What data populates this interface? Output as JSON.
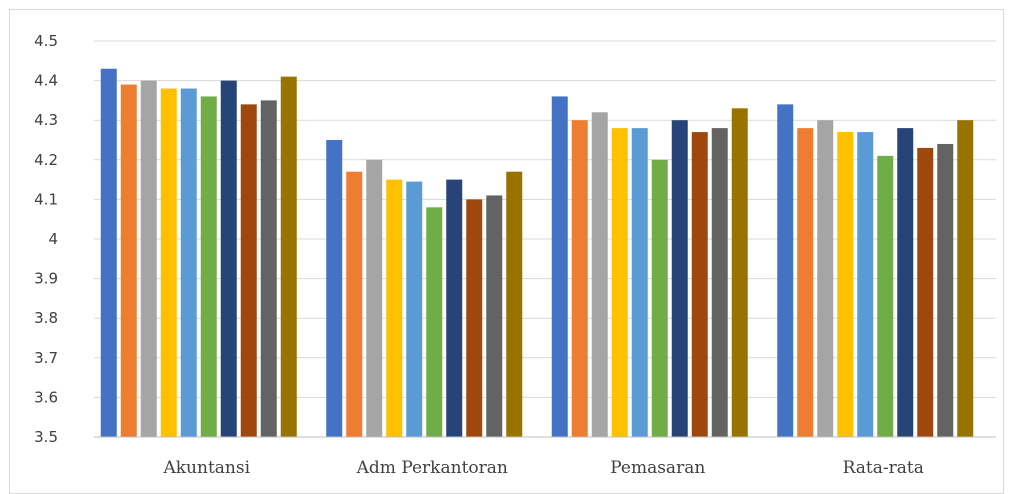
{
  "chart_data": {
    "type": "bar",
    "categories": [
      "Akuntansi",
      "Adm Perkantoran",
      "Pemasaran",
      "Rata-rata"
    ],
    "series": [
      {
        "values": [
          4.43,
          4.25,
          4.36,
          4.34
        ],
        "color": "#4472c4"
      },
      {
        "values": [
          4.39,
          4.17,
          4.3,
          4.28
        ],
        "color": "#ed7d31"
      },
      {
        "values": [
          4.4,
          4.2,
          4.32,
          4.3
        ],
        "color": "#a5a5a5"
      },
      {
        "values": [
          4.38,
          4.15,
          4.28,
          4.27
        ],
        "color": "#ffc000"
      },
      {
        "values": [
          4.38,
          4.145,
          4.28,
          4.27
        ],
        "color": "#5b9bd5"
      },
      {
        "values": [
          4.36,
          4.08,
          4.2,
          4.21
        ],
        "color": "#70ad47"
      },
      {
        "values": [
          4.4,
          4.15,
          4.3,
          4.28
        ],
        "color": "#264478"
      },
      {
        "values": [
          4.34,
          4.1,
          4.27,
          4.23
        ],
        "color": "#9e480e"
      },
      {
        "values": [
          4.35,
          4.11,
          4.28,
          4.24
        ],
        "color": "#636363"
      },
      {
        "values": [
          4.41,
          4.17,
          4.33,
          4.3
        ],
        "color": "#997300"
      }
    ],
    "yticks": [
      "3.5",
      "3.6",
      "3.7",
      "3.8",
      "3.9",
      "4",
      "4.1",
      "4.2",
      "4.3",
      "4.4",
      "4.5"
    ],
    "ylim": [
      3.5,
      4.5
    ],
    "grid": true,
    "legend": "none"
  }
}
